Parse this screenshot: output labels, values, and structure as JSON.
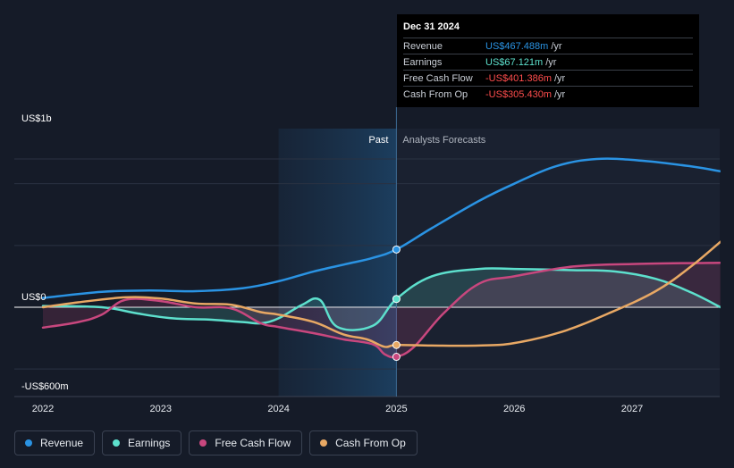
{
  "chart_data": {
    "type": "line",
    "title": "",
    "xlabel": "",
    "ylabel": "",
    "x_tick_labels": [
      "2022",
      "2023",
      "2024",
      "2025",
      "2026",
      "2027"
    ],
    "x_range": [
      2022.0,
      2027.75
    ],
    "y_tick_labels": [
      {
        "label": "US$1b",
        "value": 1200
      },
      {
        "label": "US$0",
        "value": 0
      },
      {
        "label": "-US$600m",
        "value": -600
      }
    ],
    "ylim": [
      -600,
      1200
    ],
    "past_label": "Past",
    "forecast_label": "Analysts Forecasts",
    "divider_x": 2025.0,
    "series": [
      {
        "name": "Revenue",
        "color": "#2a93e3",
        "fill": false,
        "x": [
          2022.0,
          2022.5,
          2022.9,
          2023.3,
          2023.7,
          2024.0,
          2024.3,
          2024.6,
          2024.8,
          2025.0,
          2025.3,
          2025.7,
          2026.0,
          2026.35,
          2026.7,
          2027.1,
          2027.5,
          2027.75
        ],
        "values": [
          75,
          125,
          135,
          130,
          155,
          210,
          290,
          355,
          400,
          467.488,
          640,
          860,
          1000,
          1140,
          1200,
          1185,
          1140,
          1100
        ]
      },
      {
        "name": "Earnings",
        "color": "#5de0cd",
        "fill": true,
        "x": [
          2022.0,
          2022.5,
          2022.8,
          2023.1,
          2023.4,
          2023.7,
          2023.85,
          2024.0,
          2024.2,
          2024.35,
          2024.5,
          2024.8,
          2025.0,
          2025.3,
          2025.7,
          2026.0,
          2026.5,
          2026.85,
          2027.2,
          2027.5,
          2027.75
        ],
        "values": [
          10,
          0,
          -50,
          -90,
          -100,
          -120,
          -130,
          -90,
          20,
          60,
          -160,
          -150,
          67.121,
          250,
          310,
          310,
          300,
          290,
          230,
          120,
          0
        ]
      },
      {
        "name": "Free Cash Flow",
        "color": "#c8477e",
        "fill": true,
        "x": [
          2022.0,
          2022.3,
          2022.5,
          2022.7,
          2023.0,
          2023.3,
          2023.6,
          2023.85,
          2024.0,
          2024.3,
          2024.55,
          2024.8,
          2024.9,
          2025.0,
          2025.15,
          2025.4,
          2025.7,
          2026.0,
          2026.5,
          2027.0,
          2027.75
        ],
        "values": [
          -165,
          -120,
          -60,
          60,
          50,
          0,
          -10,
          -130,
          -160,
          -210,
          -260,
          -300,
          -380,
          -401.386,
          -320,
          -50,
          190,
          250,
          330,
          350,
          360
        ]
      },
      {
        "name": "Cash From Op",
        "color": "#e8a864",
        "fill": false,
        "x": [
          2022.0,
          2022.3,
          2022.7,
          2023.0,
          2023.3,
          2023.6,
          2023.85,
          2024.0,
          2024.3,
          2024.55,
          2024.75,
          2024.9,
          2025.0,
          2025.3,
          2025.7,
          2026.0,
          2026.4,
          2026.8,
          2027.2,
          2027.5,
          2027.75
        ],
        "values": [
          0,
          40,
          80,
          70,
          30,
          20,
          -40,
          -60,
          -120,
          -220,
          -260,
          -320,
          -305.43,
          -310,
          -310,
          -290,
          -200,
          -50,
          130,
          330,
          530
        ]
      }
    ]
  },
  "tooltip": {
    "date": "Dec 31 2024",
    "rows": [
      {
        "name": "Revenue",
        "value": "US$467.488m",
        "unit": "/yr",
        "color": "#2a93e3"
      },
      {
        "name": "Earnings",
        "value": "US$67.121m",
        "unit": "/yr",
        "color": "#5de0cd"
      },
      {
        "name": "Free Cash Flow",
        "value": "-US$401.386m",
        "unit": "/yr",
        "color": "#ff4d4d"
      },
      {
        "name": "Cash From Op",
        "value": "-US$305.430m",
        "unit": "/yr",
        "color": "#ff4d4d"
      }
    ]
  },
  "legend": [
    {
      "label": "Revenue",
      "color": "#2a93e3"
    },
    {
      "label": "Earnings",
      "color": "#5de0cd"
    },
    {
      "label": "Free Cash Flow",
      "color": "#c8477e"
    },
    {
      "label": "Cash From Op",
      "color": "#e8a864"
    }
  ]
}
